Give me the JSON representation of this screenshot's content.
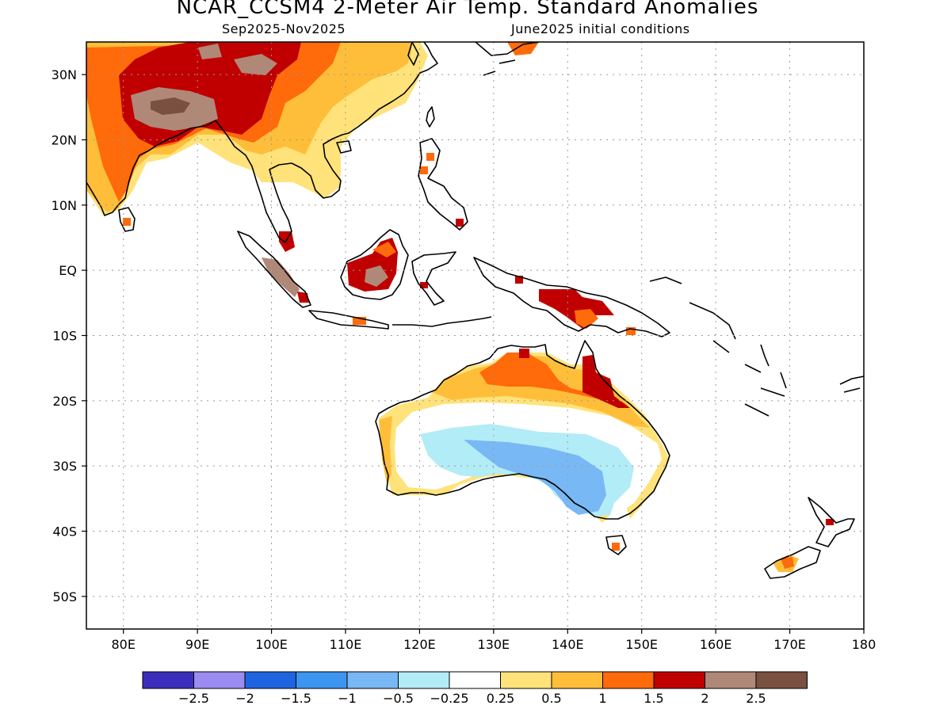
{
  "title": "NCAR_CCSM4 2-Meter Air Temp. Standard Anomalies",
  "subtitle_left": "Sep2025-Nov2025",
  "subtitle_right": "June2025 initial conditions",
  "map": {
    "lon_range": [
      75,
      180
    ],
    "lat_range": [
      -55,
      35
    ],
    "lon_ticks": [
      {
        "value": 80,
        "label": "80E"
      },
      {
        "value": 90,
        "label": "90E"
      },
      {
        "value": 100,
        "label": "100E"
      },
      {
        "value": 110,
        "label": "110E"
      },
      {
        "value": 120,
        "label": "120E"
      },
      {
        "value": 130,
        "label": "130E"
      },
      {
        "value": 140,
        "label": "140E"
      },
      {
        "value": 150,
        "label": "150E"
      },
      {
        "value": 160,
        "label": "160E"
      },
      {
        "value": 170,
        "label": "170E"
      },
      {
        "value": 180,
        "label": "180"
      }
    ],
    "lat_ticks": [
      {
        "value": 30,
        "label": "30N"
      },
      {
        "value": 20,
        "label": "20N"
      },
      {
        "value": 10,
        "label": "10N"
      },
      {
        "value": 0,
        "label": "EQ"
      },
      {
        "value": -10,
        "label": "10S"
      },
      {
        "value": -20,
        "label": "20S"
      },
      {
        "value": -30,
        "label": "30S"
      },
      {
        "value": -40,
        "label": "40S"
      },
      {
        "value": -50,
        "label": "50S"
      }
    ]
  },
  "colorbar": {
    "colors": [
      "#3b2ebd",
      "#9b8cf2",
      "#1e64e0",
      "#3c95f0",
      "#78b8f5",
      "#b2ecf7",
      "#ffffff",
      "#ffe37a",
      "#ffbe3a",
      "#ff6a0a",
      "#c00000",
      "#b08878",
      "#7a5040"
    ],
    "labels": [
      "-2.5",
      "-2",
      "-1.5",
      "-1",
      "-0.5",
      "-0.25",
      "0.25",
      "0.5",
      "1",
      "1.5",
      "2",
      "2.5"
    ]
  }
}
